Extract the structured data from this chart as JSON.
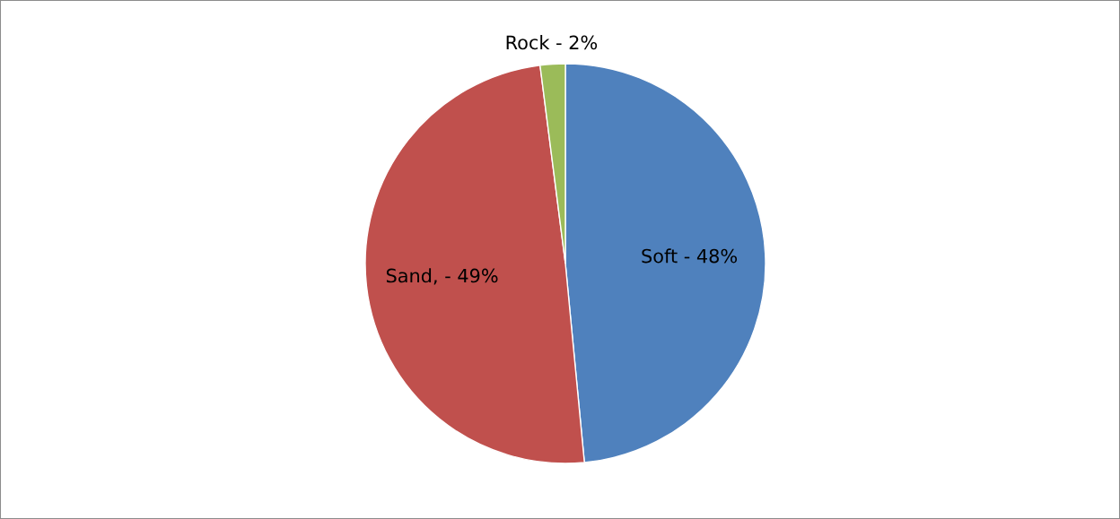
{
  "chart_data": {
    "type": "pie",
    "categories": [
      "Soft - 48%",
      "Sand, - 49%",
      "Rock - 2%"
    ],
    "values": [
      48,
      49,
      2
    ],
    "colors": [
      "#4f81bd",
      "#c0504d",
      "#9bbb59"
    ],
    "legend": false
  }
}
